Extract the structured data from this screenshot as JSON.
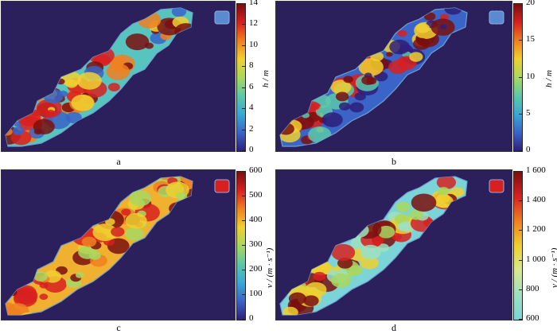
{
  "panels": [
    {
      "id": "a",
      "caption": "a",
      "colorbar": {
        "label": "h / m",
        "ticks": [
          "0",
          "2",
          "4",
          "6",
          "8",
          "10",
          "12",
          "14"
        ],
        "min": 0,
        "max": 14,
        "colors": [
          "#2e1f7a",
          "#3a64c8",
          "#38a8d8",
          "#5cc8a8",
          "#a8d860",
          "#f0d030",
          "#f08020",
          "#d82020",
          "#7a0f0f"
        ]
      },
      "background": "#2b1f5c"
    },
    {
      "id": "b",
      "caption": "b",
      "colorbar": {
        "label": "h / m",
        "ticks": [
          "0",
          "5",
          "10",
          "15",
          "20"
        ],
        "min": 0,
        "max": 20,
        "colors": [
          "#2e1f7a",
          "#3a64c8",
          "#38a8d8",
          "#5cc8a8",
          "#a8d860",
          "#f0d030",
          "#f08020",
          "#d82020",
          "#7a0f0f"
        ]
      },
      "background": "#2b1f5c"
    },
    {
      "id": "c",
      "caption": "c",
      "colorbar": {
        "label": "v / (m · s⁻¹)",
        "ticks": [
          "0",
          "100",
          "200",
          "300",
          "400",
          "500",
          "600"
        ],
        "min": 0,
        "max": 600,
        "colors": [
          "#2e1f7a",
          "#3a64c8",
          "#38a8d8",
          "#5cc8a8",
          "#a8d860",
          "#f0d030",
          "#f08020",
          "#d82020",
          "#7a0f0f"
        ]
      },
      "background": "#2b1f5c"
    },
    {
      "id": "d",
      "caption": "d",
      "colorbar": {
        "label": "v / (m · s⁻¹)",
        "ticks": [
          "600",
          "800",
          "1 000",
          "1 200",
          "1 400",
          "1 600"
        ],
        "min": 600,
        "max": 1600,
        "colors": [
          "#7ad4d8",
          "#9ee0c0",
          "#d8e890",
          "#f0d030",
          "#f08020",
          "#d82020",
          "#7a0f0f"
        ]
      },
      "background": "#2b1f5c"
    }
  ]
}
